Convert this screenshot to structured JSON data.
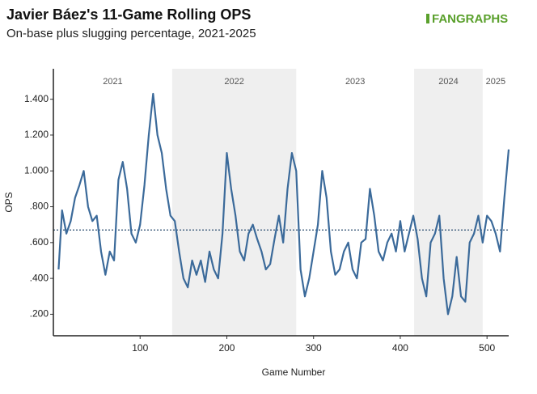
{
  "chart_data": {
    "type": "line",
    "title": "Javier Báez's 11-Game Rolling OPS",
    "subtitle": "On-base plus slugging percentage, 2021-2025",
    "logo": "FANGRAPHS",
    "xlabel": "Game Number",
    "ylabel": "OPS",
    "x": [
      6,
      10,
      15,
      20,
      25,
      30,
      35,
      40,
      45,
      50,
      55,
      60,
      65,
      70,
      75,
      80,
      85,
      90,
      95,
      100,
      105,
      110,
      115,
      120,
      125,
      130,
      135,
      140,
      145,
      150,
      155,
      160,
      165,
      170,
      175,
      180,
      185,
      190,
      195,
      200,
      205,
      210,
      215,
      220,
      225,
      230,
      235,
      240,
      245,
      250,
      255,
      260,
      265,
      270,
      275,
      280,
      285,
      290,
      295,
      300,
      305,
      310,
      315,
      320,
      325,
      330,
      335,
      340,
      345,
      350,
      355,
      360,
      365,
      370,
      375,
      380,
      385,
      390,
      395,
      400,
      405,
      410,
      415,
      420,
      425,
      430,
      435,
      440,
      445,
      450,
      455,
      460,
      465,
      470,
      475,
      480,
      485,
      490,
      495,
      500,
      505,
      510,
      515,
      520,
      525
    ],
    "series": [
      {
        "name": "OPS",
        "color": "#3b6a9a",
        "values": [
          0.45,
          0.78,
          0.65,
          0.72,
          0.85,
          0.92,
          1.0,
          0.8,
          0.72,
          0.75,
          0.55,
          0.42,
          0.55,
          0.5,
          0.95,
          1.05,
          0.9,
          0.65,
          0.6,
          0.7,
          0.92,
          1.2,
          1.43,
          1.2,
          1.1,
          0.9,
          0.75,
          0.72,
          0.55,
          0.4,
          0.35,
          0.5,
          0.42,
          0.5,
          0.38,
          0.55,
          0.45,
          0.4,
          0.65,
          1.1,
          0.9,
          0.75,
          0.55,
          0.5,
          0.65,
          0.7,
          0.62,
          0.55,
          0.45,
          0.48,
          0.62,
          0.75,
          0.6,
          0.9,
          1.1,
          1.0,
          0.45,
          0.3,
          0.4,
          0.55,
          0.7,
          1.0,
          0.85,
          0.55,
          0.42,
          0.45,
          0.55,
          0.6,
          0.45,
          0.4,
          0.6,
          0.62,
          0.9,
          0.75,
          0.55,
          0.5,
          0.6,
          0.65,
          0.55,
          0.72,
          0.55,
          0.65,
          0.75,
          0.62,
          0.4,
          0.3,
          0.6,
          0.65,
          0.75,
          0.4,
          0.2,
          0.3,
          0.52,
          0.3,
          0.27,
          0.6,
          0.65,
          0.75,
          0.6,
          0.75,
          0.72,
          0.65,
          0.55,
          0.85,
          1.12
        ]
      }
    ],
    "reference_line": 0.67,
    "eras": [
      {
        "label": "2021",
        "start": 0,
        "end": 137,
        "shaded": false
      },
      {
        "label": "2022",
        "start": 137,
        "end": 280,
        "shaded": true
      },
      {
        "label": "2023",
        "start": 280,
        "end": 416,
        "shaded": false
      },
      {
        "label": "2024",
        "start": 416,
        "end": 495,
        "shaded": true
      },
      {
        "label": "2025",
        "start": 495,
        "end": 525,
        "shaded": false
      }
    ],
    "xlim": [
      0,
      525
    ],
    "xticks": [
      100,
      200,
      300,
      400,
      500
    ],
    "ylim": [
      0.08,
      1.57
    ],
    "yticks": [
      {
        "value": 0.2,
        "label": ".200"
      },
      {
        "value": 0.4,
        "label": ".400"
      },
      {
        "value": 0.6,
        "label": ".600"
      },
      {
        "value": 0.8,
        "label": ".800"
      },
      {
        "value": 1.0,
        "label": "1.000"
      },
      {
        "value": 1.2,
        "label": "1.200"
      },
      {
        "value": 1.4,
        "label": "1.400"
      }
    ]
  }
}
